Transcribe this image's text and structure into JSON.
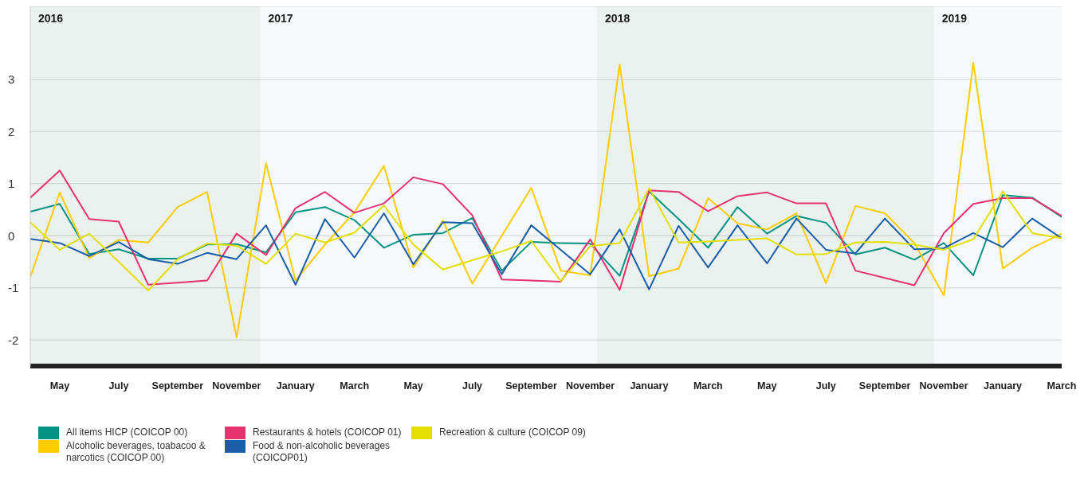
{
  "chart_data": {
    "type": "line",
    "x": [
      "2016-04",
      "2016-05",
      "2016-06",
      "2016-07",
      "2016-08",
      "2016-09",
      "2016-10",
      "2016-11",
      "2016-12",
      "2017-01",
      "2017-02",
      "2017-03",
      "2017-04",
      "2017-05",
      "2017-06",
      "2017-07",
      "2017-08",
      "2017-09",
      "2017-10",
      "2017-11",
      "2017-12",
      "2018-01",
      "2018-02",
      "2018-03",
      "2018-04",
      "2018-05",
      "2018-06",
      "2018-07",
      "2018-08",
      "2018-09",
      "2018-10",
      "2018-11",
      "2018-12",
      "2019-01",
      "2019-02",
      "2019-03"
    ],
    "series": [
      {
        "name": "All items HICP (COICOP 00)",
        "color": "#009383",
        "values": [
          0.46,
          0.61,
          -0.35,
          -0.26,
          -0.44,
          -0.44,
          -0.17,
          -0.16,
          -0.32,
          0.45,
          0.55,
          0.3,
          -0.23,
          0.02,
          0.05,
          0.34,
          -0.67,
          -0.12,
          -0.14,
          -0.15,
          -0.77,
          0.85,
          0.32,
          -0.23,
          0.55,
          0.04,
          0.38,
          0.25,
          -0.36,
          -0.23,
          -0.46,
          -0.14,
          -0.76,
          0.78,
          0.73,
          0.36
        ]
      },
      {
        "name": "Alcoholic beverages, toabacoo & narcotics (COICOP 00)",
        "color": "#ffcc00",
        "values": [
          -0.79,
          0.83,
          -0.43,
          -0.08,
          -0.13,
          0.55,
          0.84,
          -1.95,
          1.39,
          -0.86,
          -0.17,
          0.45,
          1.34,
          -0.61,
          0.29,
          -0.92,
          0.0,
          0.92,
          -0.67,
          -0.76,
          3.29,
          -0.78,
          -0.63,
          0.72,
          0.24,
          0.12,
          0.43,
          -0.91,
          0.57,
          0.43,
          -0.14,
          -1.15,
          3.32,
          -0.63,
          -0.23,
          0.04
        ]
      },
      {
        "name": "Restaurants & hotels (COICOP 01)",
        "color": "#e5336f",
        "values": [
          0.73,
          1.25,
          0.32,
          0.27,
          -0.94,
          -0.9,
          -0.86,
          0.04,
          -0.37,
          0.53,
          0.84,
          0.44,
          0.62,
          1.12,
          0.99,
          0.39,
          -0.84,
          -0.86,
          -0.88,
          -0.07,
          -1.04,
          0.87,
          0.84,
          0.47,
          0.76,
          0.83,
          0.62,
          0.62,
          -0.67,
          -0.81,
          -0.95,
          0.05,
          0.61,
          0.72,
          0.72,
          0.38
        ]
      },
      {
        "name": "Food & non-alcoholic beverages (COICOP01)",
        "color": "#1a5ea8",
        "values": [
          -0.06,
          -0.14,
          -0.39,
          -0.12,
          -0.45,
          -0.54,
          -0.33,
          -0.45,
          0.2,
          -0.94,
          0.32,
          -0.42,
          0.43,
          -0.55,
          0.26,
          0.24,
          -0.74,
          0.2,
          -0.27,
          -0.74,
          0.12,
          -1.03,
          0.19,
          -0.61,
          0.2,
          -0.53,
          0.33,
          -0.27,
          -0.34,
          0.33,
          -0.26,
          -0.24,
          0.05,
          -0.22,
          0.33,
          -0.05
        ]
      },
      {
        "name": "Recreation & culture (COICOP 09)",
        "color": "#e3e000",
        "values": [
          0.26,
          -0.27,
          0.04,
          -0.5,
          -1.05,
          -0.45,
          -0.15,
          -0.19,
          -0.54,
          0.04,
          -0.13,
          0.06,
          0.58,
          -0.17,
          -0.65,
          -0.47,
          -0.3,
          -0.1,
          -0.87,
          -0.2,
          -0.14,
          0.91,
          -0.13,
          -0.11,
          -0.08,
          -0.05,
          -0.36,
          -0.35,
          -0.13,
          -0.12,
          -0.17,
          -0.27,
          -0.07,
          0.85,
          0.05,
          -0.05
        ]
      }
    ],
    "xlim": [
      "2016-04",
      "2019-03"
    ],
    "xticks": [
      {
        "value": "2016-05",
        "label": "May"
      },
      {
        "value": "2016-07",
        "label": "July"
      },
      {
        "value": "2016-09",
        "label": "September"
      },
      {
        "value": "2016-11",
        "label": "November"
      },
      {
        "value": "2017-01",
        "label": "January"
      },
      {
        "value": "2017-03",
        "label": "March"
      },
      {
        "value": "2017-05",
        "label": "May"
      },
      {
        "value": "2017-07",
        "label": "July"
      },
      {
        "value": "2017-09",
        "label": "September"
      },
      {
        "value": "2017-11",
        "label": "November"
      },
      {
        "value": "2018-01",
        "label": "January"
      },
      {
        "value": "2018-03",
        "label": "March"
      },
      {
        "value": "2018-05",
        "label": "May"
      },
      {
        "value": "2018-07",
        "label": "July"
      },
      {
        "value": "2018-09",
        "label": "September"
      },
      {
        "value": "2018-11",
        "label": "November"
      },
      {
        "value": "2019-01",
        "label": "January"
      },
      {
        "value": "2019-03",
        "label": "March"
      }
    ],
    "ylim": [
      -2.5,
      4.4
    ],
    "yticks": [
      -2,
      -1,
      0,
      1,
      2,
      3
    ],
    "bands": [
      {
        "axis": "x",
        "from": "2016-04",
        "to": "2016-11-25",
        "label": "2016",
        "color": "#e3ecea"
      },
      {
        "axis": "x",
        "from": "2016-11-25",
        "to": "2017-11-08",
        "label": "2017",
        "color": "#f2f7f7"
      },
      {
        "axis": "x",
        "from": "2017-11-08",
        "to": "2018-10-21",
        "label": "2018",
        "color": "#e3ecea"
      },
      {
        "axis": "x",
        "from": "2018-10-21",
        "to": "2019-03",
        "label": "2019",
        "color": "#f2f7f7"
      }
    ],
    "grid": "y",
    "legend": "bottom",
    "marker": "none",
    "line_style": "solid"
  }
}
